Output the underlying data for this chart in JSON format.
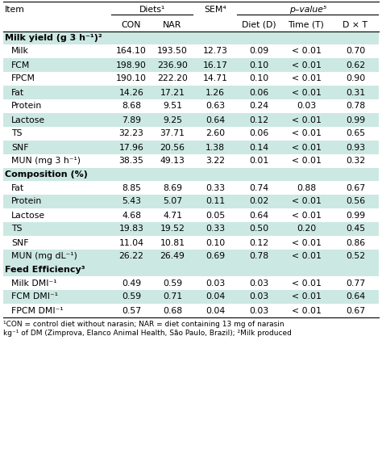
{
  "diets_label": "Diets¹",
  "pvalue_label": "p–value⁵",
  "col_headers_row1": [
    "",
    "Diets¹",
    "",
    "SEM⁴",
    "p–value⁵",
    "",
    ""
  ],
  "col_headers_row2": [
    "Item",
    "CON",
    "NAR",
    "",
    "Diet (D)",
    "Time (T)",
    "D × T"
  ],
  "section_headers": [
    "Milk yield (g 3 h⁻¹)²",
    "Composition (%)",
    "Feed Efficiency³"
  ],
  "rows": [
    [
      "Milk",
      "164.10",
      "193.50",
      "12.73",
      "0.09",
      "< 0.01",
      "0.70"
    ],
    [
      "FCM",
      "198.90",
      "236.90",
      "16.17",
      "0.10",
      "< 0.01",
      "0.62"
    ],
    [
      "FPCM",
      "190.10",
      "222.20",
      "14.71",
      "0.10",
      "< 0.01",
      "0.90"
    ],
    [
      "Fat",
      "14.26",
      "17.21",
      "1.26",
      "0.06",
      "< 0.01",
      "0.31"
    ],
    [
      "Protein",
      "8.68",
      "9.51",
      "0.63",
      "0.24",
      "0.03",
      "0.78"
    ],
    [
      "Lactose",
      "7.89",
      "9.25",
      "0.64",
      "0.12",
      "< 0.01",
      "0.99"
    ],
    [
      "TS",
      "32.23",
      "37.71",
      "2.60",
      "0.06",
      "< 0.01",
      "0.65"
    ],
    [
      "SNF",
      "17.96",
      "20.56",
      "1.38",
      "0.14",
      "< 0.01",
      "0.93"
    ],
    [
      "MUN (mg 3 h⁻¹)",
      "38.35",
      "49.13",
      "3.22",
      "0.01",
      "< 0.01",
      "0.32"
    ],
    [
      "Fat",
      "8.85",
      "8.69",
      "0.33",
      "0.74",
      "0.88",
      "0.67"
    ],
    [
      "Protein",
      "5.43",
      "5.07",
      "0.11",
      "0.02",
      "< 0.01",
      "0.56"
    ],
    [
      "Lactose",
      "4.68",
      "4.71",
      "0.05",
      "0.64",
      "< 0.01",
      "0.99"
    ],
    [
      "TS",
      "19.83",
      "19.52",
      "0.33",
      "0.50",
      "0.20",
      "0.45"
    ],
    [
      "SNF",
      "11.04",
      "10.81",
      "0.10",
      "0.12",
      "< 0.01",
      "0.86"
    ],
    [
      "MUN (mg dL⁻¹)",
      "26.22",
      "26.49",
      "0.69",
      "0.78",
      "< 0.01",
      "0.52"
    ],
    [
      "Milk DMI⁻¹",
      "0.49",
      "0.59",
      "0.03",
      "0.03",
      "< 0.01",
      "0.77"
    ],
    [
      "FCM DMI⁻¹",
      "0.59",
      "0.71",
      "0.04",
      "0.03",
      "< 0.01",
      "0.64"
    ],
    [
      "FPCM DMI⁻¹",
      "0.57",
      "0.68",
      "0.04",
      "0.03",
      "< 0.01",
      "0.67"
    ]
  ],
  "section_before_row": [
    0,
    9,
    15
  ],
  "footnote1": "¹CON = control diet without narasin; NAR = diet containing 13 mg of narasin",
  "footnote2": "kg⁻¹ of DM (Zimprova, Elanco Animal Health, São Paulo, Brazil); ²Milk produced",
  "bg_teal": "#cce8e2",
  "bg_white": "#ffffff",
  "fig_bg": "#ffffff",
  "font_size": 7.8,
  "bold_size": 8.0
}
